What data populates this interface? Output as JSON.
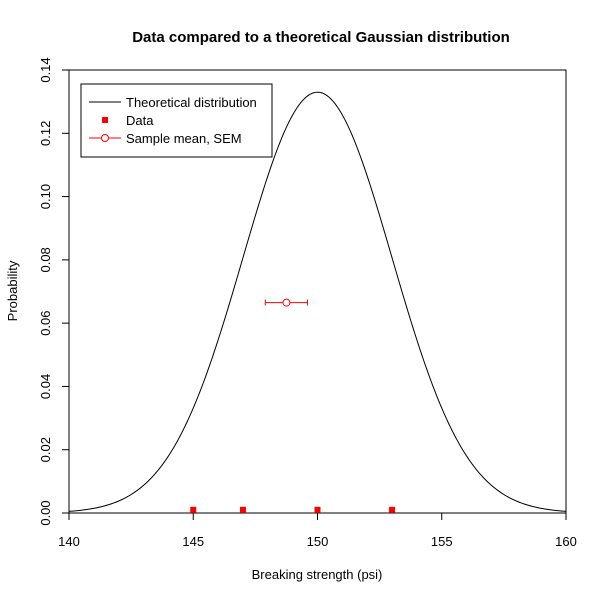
{
  "chart_data": {
    "type": "line",
    "title": "Data compared to a theoretical Gaussian distribution",
    "xlabel": "Breaking strength (psi)",
    "ylabel": "Probability",
    "xlim": [
      140,
      160
    ],
    "ylim": [
      0,
      0.14
    ],
    "x_ticks": [
      "140",
      "145",
      "150",
      "155",
      "160"
    ],
    "y_ticks": [
      "0.00",
      "0.02",
      "0.04",
      "0.06",
      "0.08",
      "0.10",
      "0.12",
      "0.14"
    ],
    "grid": false,
    "legend_position": "top-left",
    "series": [
      {
        "name": "Theoretical distribution",
        "kind": "gaussian-curve",
        "mean": 150,
        "sd": 3,
        "color": "#000000"
      },
      {
        "name": "Data",
        "kind": "points",
        "marker": "filled-square",
        "color": "#ff0000",
        "x": [
          145,
          147,
          150,
          153
        ],
        "y": [
          0.001,
          0.001,
          0.001,
          0.001
        ]
      },
      {
        "name": "Sample mean, SEM",
        "kind": "errorbar",
        "marker": "open-circle",
        "color": "#ff0000",
        "x": 148.75,
        "y": 0.0665,
        "xerr": 0.85
      }
    ]
  }
}
